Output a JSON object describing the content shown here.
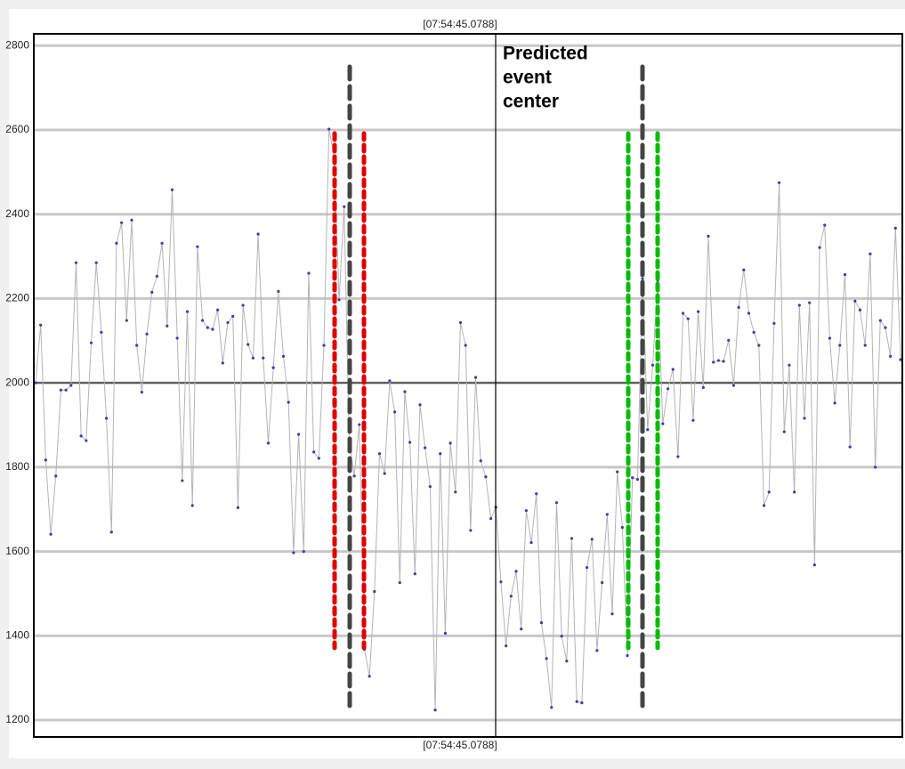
{
  "chart_data": {
    "type": "line",
    "time_label": "[07:54:45.0788]",
    "annotation": [
      "Predicted",
      "event",
      "center"
    ],
    "ylim": [
      1160,
      2828
    ],
    "yticks": [
      1200,
      1400,
      1600,
      1800,
      2000,
      2200,
      2400,
      2600,
      2800
    ],
    "grid": true,
    "reference_line": 2000,
    "line_color": "#b4b4b4",
    "marker_color": "#3b3bb0",
    "values": [
      2000,
      2137,
      1817,
      1641,
      1779,
      1983,
      1983,
      1994,
      2285,
      1874,
      1863,
      2095,
      2285,
      2120,
      1916,
      1646,
      2331,
      2380,
      2148,
      2386,
      2089,
      1978,
      2116,
      2215,
      2253,
      2331,
      2135,
      2458,
      2106,
      1768,
      2169,
      1709,
      2323,
      2148,
      2131,
      2127,
      2173,
      2047,
      2143,
      2158,
      1704,
      2184,
      2091,
      2059,
      2353,
      2059,
      1857,
      2036,
      2217,
      2063,
      1954,
      1597,
      1878,
      1600,
      2260,
      1836,
      1821,
      2089,
      2602,
      2538,
      2197,
      2418,
      1859,
      1779,
      1901,
      1368,
      1304,
      1505,
      1832,
      1785,
      2005,
      1931,
      1526,
      1979,
      1859,
      1547,
      1948,
      1846,
      1754,
      1224,
      1832,
      1406,
      1857,
      1741,
      2143,
      2089,
      1650,
      2013,
      1815,
      1777,
      1678,
      1705,
      1528,
      1376,
      1494,
      1553,
      1416,
      1697,
      1621,
      1737,
      1431,
      1346,
      1230,
      1716,
      1399,
      1340,
      1631,
      1244,
      1241,
      1562,
      1629,
      1365,
      1526,
      1688,
      1452,
      1789,
      1657,
      1353,
      1775,
      1771,
      2247,
      1889,
      2042,
      2243,
      1903,
      1986,
      2032,
      1825,
      2165,
      2152,
      1911,
      2169,
      1989,
      2348,
      2049,
      2053,
      2051,
      2101,
      1994,
      2179,
      2268,
      2165,
      2120,
      2089,
      1709,
      1741,
      2141,
      2475,
      1884,
      2042,
      1741,
      2184,
      1916,
      2190,
      1568,
      2321,
      2374,
      2106,
      1952,
      2089,
      2257,
      1848,
      2194,
      2173,
      2089,
      2306,
      1800,
      2148,
      2131,
      2063,
      2367,
      2055
    ]
  }
}
